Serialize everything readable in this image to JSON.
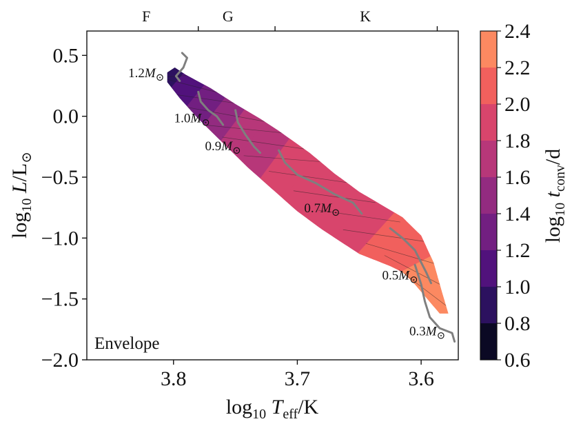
{
  "chart_data": {
    "type": "heatmap",
    "xlabel": "log10 Teff/K",
    "ylabel": "log10 L/L⊙",
    "xlim": [
      3.87,
      3.57
    ],
    "ylim": [
      -2.0,
      0.7
    ],
    "x_inverted": true,
    "xticks": [
      3.8,
      3.7,
      3.6
    ],
    "xtick_labels": [
      "3.8",
      "3.7",
      "3.6"
    ],
    "yticks": [
      0.5,
      0.0,
      -0.5,
      -1.0,
      -1.5,
      -2.0
    ],
    "ytick_labels": [
      "0.5",
      "0.0",
      "−0.5",
      "−1.0",
      "−1.5",
      "−2.0"
    ],
    "panel_label": "Envelope",
    "top_axis": {
      "spectral_types": [
        "F",
        "G",
        "K"
      ],
      "spectral_x": [
        3.822,
        3.756,
        3.645
      ],
      "boundaries": [
        3.78,
        3.718,
        3.587
      ]
    },
    "colorbar": {
      "label": "log10 tconv/d",
      "min": 0.6,
      "max": 2.4,
      "levels": [
        0.6,
        0.8,
        1.0,
        1.2,
        1.4,
        1.6,
        1.8,
        2.0,
        2.2,
        2.4
      ],
      "tick_labels": [
        "0.6",
        "0.8",
        "1.0",
        "1.2",
        "1.4",
        "1.6",
        "1.8",
        "2.0",
        "2.2",
        "2.4"
      ],
      "colors": [
        "#0b0924",
        "#2c115f",
        "#51127c",
        "#721f81",
        "#932b80",
        "#b73779",
        "#d8456c",
        "#f1605d",
        "#fc8961",
        "#fec287",
        "#fcfdbf"
      ],
      "colormap": "magma"
    },
    "band_profile": [
      {
        "teff": 3.802,
        "logL": 0.36,
        "value": 0.7
      },
      {
        "teff": 3.79,
        "logL": 0.3,
        "value": 0.95
      },
      {
        "teff": 3.78,
        "logL": 0.2,
        "value": 1.15
      },
      {
        "teff": 3.765,
        "logL": 0.08,
        "value": 1.35
      },
      {
        "teff": 3.75,
        "logL": -0.05,
        "value": 1.5
      },
      {
        "teff": 3.735,
        "logL": -0.16,
        "value": 1.65
      },
      {
        "teff": 3.72,
        "logL": -0.28,
        "value": 1.75
      },
      {
        "teff": 3.7,
        "logL": -0.42,
        "value": 1.82
      },
      {
        "teff": 3.68,
        "logL": -0.58,
        "value": 1.88
      },
      {
        "teff": 3.66,
        "logL": -0.74,
        "value": 1.93
      },
      {
        "teff": 3.64,
        "logL": -0.9,
        "value": 1.98
      },
      {
        "teff": 3.62,
        "logL": -1.06,
        "value": 2.05
      },
      {
        "teff": 3.605,
        "logL": -1.22,
        "value": 2.15
      },
      {
        "teff": 3.595,
        "logL": -1.38,
        "value": 2.25
      },
      {
        "teff": 3.588,
        "logL": -1.55,
        "value": 2.35
      }
    ],
    "band_upper_edge": [
      [
        3.799,
        0.4
      ],
      [
        3.79,
        0.34
      ],
      [
        3.77,
        0.23
      ],
      [
        3.75,
        0.1
      ],
      [
        3.73,
        -0.02
      ],
      [
        3.715,
        -0.12
      ],
      [
        3.69,
        -0.3
      ],
      [
        3.67,
        -0.47
      ],
      [
        3.65,
        -0.62
      ],
      [
        3.63,
        -0.74
      ],
      [
        3.615,
        -0.83
      ],
      [
        3.6,
        -0.98
      ],
      [
        3.59,
        -1.2
      ],
      [
        3.583,
        -1.45
      ],
      [
        3.578,
        -1.62
      ]
    ],
    "band_lower_edge": [
      [
        3.585,
        -1.62
      ],
      [
        3.595,
        -1.5
      ],
      [
        3.605,
        -1.38
      ],
      [
        3.615,
        -1.28
      ],
      [
        3.625,
        -1.23
      ],
      [
        3.65,
        -1.13
      ],
      [
        3.68,
        -0.93
      ],
      [
        3.7,
        -0.78
      ],
      [
        3.72,
        -0.6
      ],
      [
        3.74,
        -0.42
      ],
      [
        3.76,
        -0.22
      ],
      [
        3.78,
        -0.02
      ],
      [
        3.795,
        0.15
      ],
      [
        3.805,
        0.28
      ],
      [
        3.805,
        0.36
      ]
    ],
    "tracks": [
      {
        "label": "1.2M⊙",
        "mass": 1.2,
        "label_pos": [
          3.822,
          0.32
        ],
        "points": [
          [
            3.793,
            0.52
          ],
          [
            3.789,
            0.48
          ],
          [
            3.792,
            0.4
          ],
          [
            3.798,
            0.33
          ],
          [
            3.795,
            0.29
          ]
        ]
      },
      {
        "label": "1.0M⊙",
        "mass": 1.0,
        "label_pos": [
          3.785,
          -0.05
        ],
        "points": [
          [
            3.78,
            0.2
          ],
          [
            3.778,
            0.12
          ],
          [
            3.772,
            0.05
          ],
          [
            3.765,
            0.0
          ],
          [
            3.76,
            -0.07
          ]
        ]
      },
      {
        "label": "0.9M⊙",
        "mass": 0.9,
        "label_pos": [
          3.76,
          -0.28
        ],
        "points": [
          [
            3.75,
            0.05
          ],
          [
            3.748,
            -0.05
          ],
          [
            3.742,
            -0.15
          ],
          [
            3.735,
            -0.25
          ],
          [
            3.73,
            -0.3
          ]
        ]
      },
      {
        "label": "0.7M⊙",
        "mass": 0.7,
        "label_pos": [
          3.68,
          -0.79
        ],
        "points": [
          [
            3.715,
            -0.28
          ],
          [
            3.71,
            -0.38
          ],
          [
            3.7,
            -0.48
          ],
          [
            3.685,
            -0.55
          ],
          [
            3.67,
            -0.64
          ],
          [
            3.655,
            -0.71
          ],
          [
            3.648,
            -0.8
          ]
        ]
      },
      {
        "label": "0.5M⊙",
        "mass": 0.5,
        "label_pos": [
          3.617,
          -1.34
        ],
        "points": [
          [
            3.625,
            -0.92
          ],
          [
            3.615,
            -1.0
          ],
          [
            3.605,
            -1.1
          ],
          [
            3.6,
            -1.2
          ],
          [
            3.596,
            -1.28
          ],
          [
            3.592,
            -1.37
          ]
        ]
      },
      {
        "label": "0.3M⊙",
        "mass": 0.3,
        "label_pos": [
          3.595,
          -1.8
        ],
        "points": [
          [
            3.605,
            -1.22
          ],
          [
            3.6,
            -1.38
          ],
          [
            3.597,
            -1.52
          ],
          [
            3.593,
            -1.65
          ],
          [
            3.585,
            -1.74
          ],
          [
            3.575,
            -1.78
          ],
          [
            3.573,
            -1.85
          ]
        ]
      }
    ]
  }
}
